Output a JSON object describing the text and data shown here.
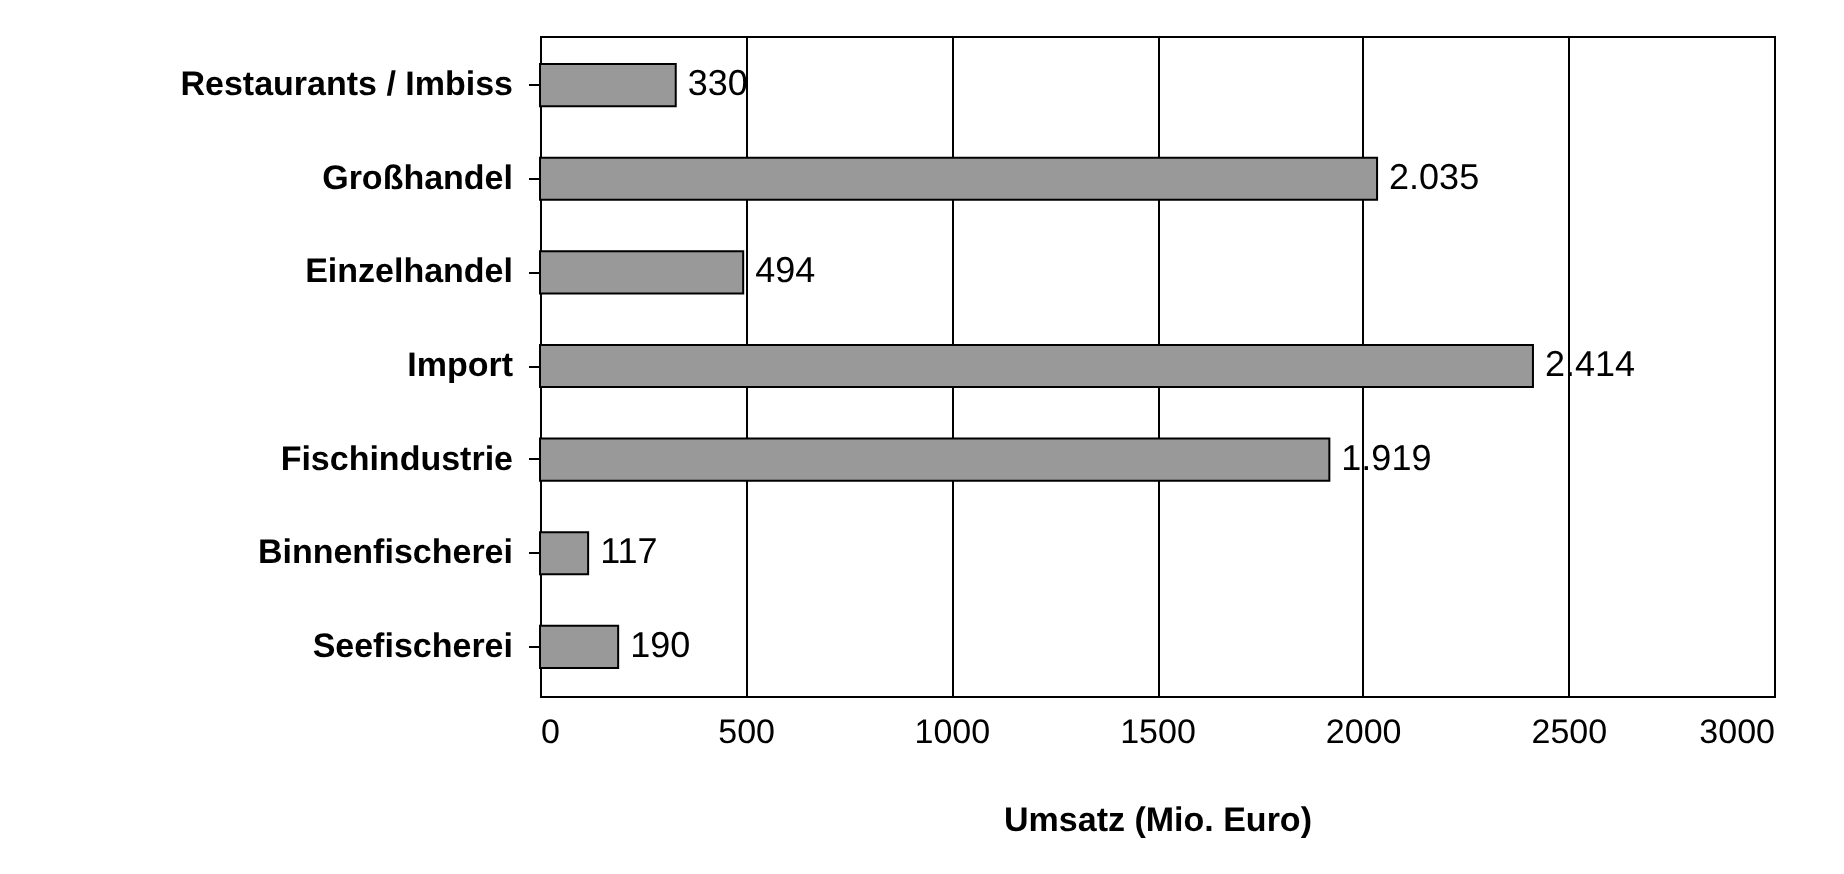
{
  "chart_data": {
    "type": "bar",
    "orientation": "horizontal",
    "xlabel": "Umsatz (Mio. Euro)",
    "categories": [
      "Restaurants / Imbiss",
      "Großhandel",
      "Einzelhandel",
      "Import",
      "Fischindustrie",
      "Binnenfischerei",
      "Seefischerei"
    ],
    "series": [
      {
        "color": "#999999",
        "values": [
          330,
          2035,
          494,
          2414,
          1919,
          117,
          190
        ],
        "value_labels": [
          "330",
          "2.035",
          "494",
          "2.414",
          "1.919",
          "117",
          "190"
        ]
      }
    ],
    "xlim": [
      0,
      3000
    ],
    "xticks": [
      0,
      500,
      1000,
      1500,
      2000,
      2500,
      3000
    ],
    "grid": "x"
  }
}
